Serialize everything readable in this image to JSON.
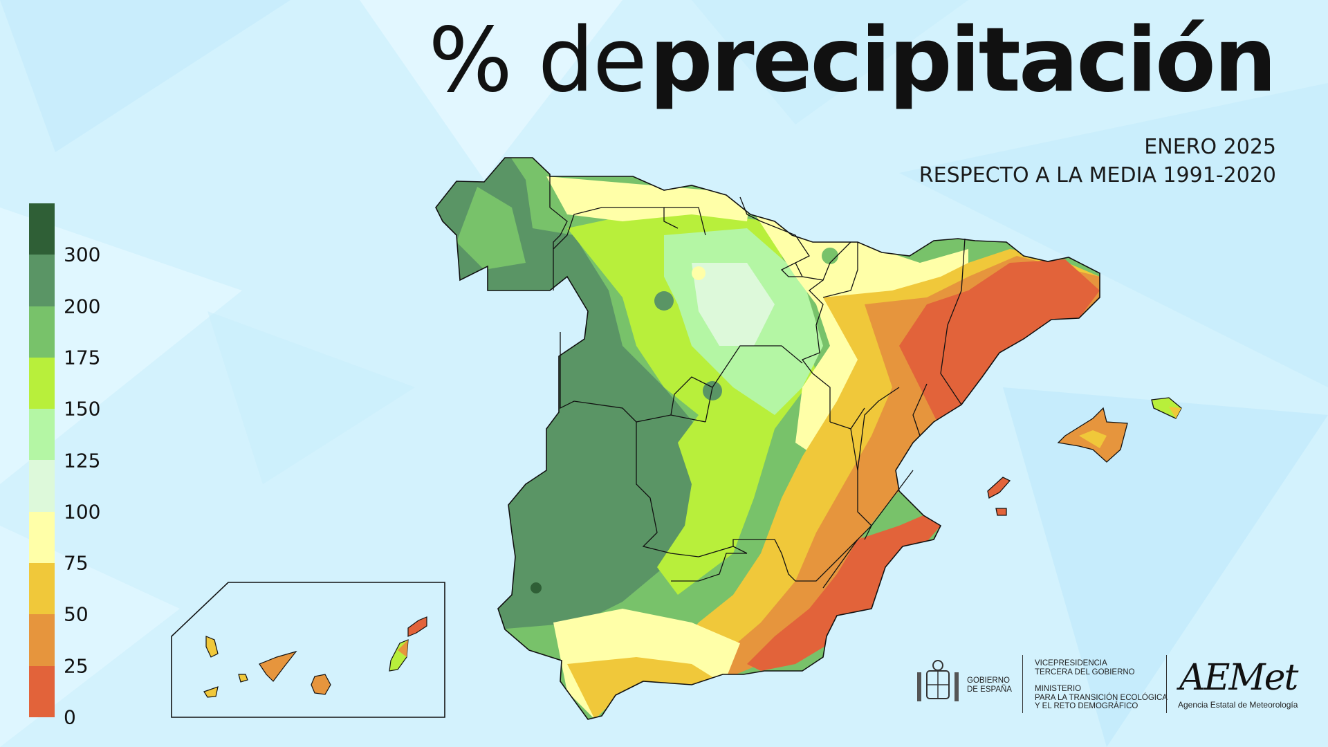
{
  "title": {
    "light": "% de",
    "bold": "precipitación"
  },
  "subtitle": {
    "line1": "ENERO 2025",
    "line2": "RESPECTO A LA MEDIA 1991-2020"
  },
  "legend": {
    "colors": [
      "#2f5f36",
      "#5a9565",
      "#78c26a",
      "#b8ef3b",
      "#b4f6a4",
      "#ddf9da",
      "#ffffa8",
      "#f0c83a",
      "#e6953d",
      "#e2633a"
    ],
    "ticks": [
      "300",
      "200",
      "175",
      "150",
      "125",
      "100",
      "75",
      "50",
      "25",
      "0"
    ]
  },
  "logos": {
    "gobierno": [
      "GOBIERNO",
      "DE ESPAÑA"
    ],
    "vicepresidencia": [
      "VICEPRESIDENCIA",
      "TERCERA DEL GOBIERNO"
    ],
    "ministerio": [
      "MINISTERIO",
      "PARA LA TRANSICIÓN ECOLÓGICA",
      "Y EL RETO DEMOGRÁFICO"
    ],
    "aemet": "AEMet",
    "aemet_full": "Agencia Estatal de Meteorología"
  }
}
